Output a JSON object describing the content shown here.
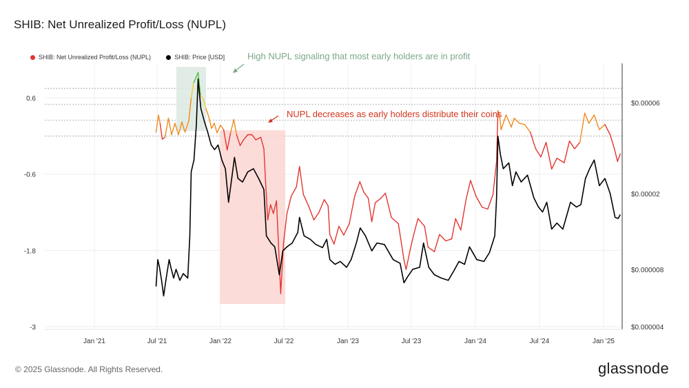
{
  "page": {
    "title": "SHIB: Net Unrealized Profit/Loss (NUPL)",
    "footer": "© 2025 Glassnode. All Rights Reserved.",
    "logo": "glassnode"
  },
  "colors": {
    "nupl_red": "#e3342f",
    "nupl_orange": "#f08a1c",
    "nupl_yellow": "#e9cf3a",
    "nupl_green": "#4ec23c",
    "price": "#000000",
    "green_annotation": "#7aa889",
    "red_annotation": "#d2341c",
    "green_box": "#dde9e2",
    "red_box": "#fbd6d2"
  },
  "chart_data": {
    "type": "line",
    "legend": [
      {
        "label": "SHIB: Net Unrealized Profit/Loss (NUPL)",
        "color": "#e3342f"
      },
      {
        "label": "SHIB: Price [USD]",
        "color": "#000000"
      }
    ],
    "x_ticks": [
      "Jan '21",
      "Jul '21",
      "Jan '22",
      "Jul '22",
      "Jan '23",
      "Jul '23",
      "Jan '24",
      "Jul '24",
      "Jan '25"
    ],
    "x_tick_dates": [
      "2021-01-01",
      "2021-07-01",
      "2022-01-01",
      "2022-07-01",
      "2023-01-01",
      "2023-07-01",
      "2024-01-01",
      "2024-07-01",
      "2025-01-01"
    ],
    "y_left": {
      "ticks": [
        "0.6",
        "-0.6",
        "-1.8",
        "-3"
      ],
      "values": [
        0.6,
        -0.6,
        -1.8,
        -3
      ],
      "range": [
        -3,
        0.6
      ]
    },
    "y_right": {
      "ticks": [
        "$0.00006",
        "$0.00002",
        "$0.000008",
        "$0.000004"
      ],
      "values": [
        6e-05,
        2e-05,
        8e-06,
        4e-06
      ],
      "scale": "log",
      "range": [
        4e-06,
        8e-05
      ]
    },
    "nupl_threshold_lines": [
      0.75,
      0.5,
      0.25,
      0
    ],
    "series": [
      {
        "name": "SHIB: Net Unrealized Profit/Loss (NUPL)",
        "axis": "left",
        "points": [
          [
            "2021-06-28",
            0.06
          ],
          [
            "2021-07-05",
            0.33
          ],
          [
            "2021-07-10",
            0.19
          ],
          [
            "2021-07-16",
            -0.05
          ],
          [
            "2021-07-24",
            -0.02
          ],
          [
            "2021-08-03",
            0.28
          ],
          [
            "2021-08-12",
            0.02
          ],
          [
            "2021-08-22",
            0.2
          ],
          [
            "2021-09-01",
            0.02
          ],
          [
            "2021-09-11",
            0.22
          ],
          [
            "2021-09-20",
            0.06
          ],
          [
            "2021-10-01",
            0.24
          ],
          [
            "2021-10-08",
            0.6
          ],
          [
            "2021-10-15",
            0.84
          ],
          [
            "2021-10-22",
            0.92
          ],
          [
            "2021-10-28",
            1.0
          ],
          [
            "2021-11-04",
            0.64
          ],
          [
            "2021-11-12",
            0.58
          ],
          [
            "2021-11-20",
            0.43
          ],
          [
            "2021-11-28",
            0.3
          ],
          [
            "2021-12-06",
            0.12
          ],
          [
            "2021-12-14",
            0.2
          ],
          [
            "2021-12-22",
            0.05
          ],
          [
            "2022-01-01",
            0.17
          ],
          [
            "2022-01-10",
            0.1
          ],
          [
            "2022-01-20",
            -0.22
          ],
          [
            "2022-01-30",
            0.05
          ],
          [
            "2022-02-08",
            0.26
          ],
          [
            "2022-02-16",
            0.02
          ],
          [
            "2022-02-26",
            -0.15
          ],
          [
            "2022-03-08",
            -0.06
          ],
          [
            "2022-03-20",
            0.02
          ],
          [
            "2022-04-01",
            0.02
          ],
          [
            "2022-04-12",
            -0.06
          ],
          [
            "2022-04-26",
            -0.02
          ],
          [
            "2022-05-05",
            -0.2
          ],
          [
            "2022-05-10",
            -0.75
          ],
          [
            "2022-05-16",
            -1.32
          ],
          [
            "2022-05-24",
            -1.08
          ],
          [
            "2022-06-01",
            -1.22
          ],
          [
            "2022-06-10",
            -1.02
          ],
          [
            "2022-06-18",
            -2.0
          ],
          [
            "2022-06-22",
            -2.48
          ],
          [
            "2022-06-30",
            -1.68
          ],
          [
            "2022-07-10",
            -1.22
          ],
          [
            "2022-07-22",
            -0.95
          ],
          [
            "2022-08-06",
            -0.8
          ],
          [
            "2022-08-15",
            -0.48
          ],
          [
            "2022-08-26",
            -0.92
          ],
          [
            "2022-09-10",
            -1.1
          ],
          [
            "2022-09-25",
            -1.32
          ],
          [
            "2022-10-10",
            -1.2
          ],
          [
            "2022-10-25",
            -1.0
          ],
          [
            "2022-11-05",
            -1.1
          ],
          [
            "2022-11-10",
            -1.55
          ],
          [
            "2022-11-22",
            -1.7
          ],
          [
            "2022-12-06",
            -1.42
          ],
          [
            "2022-12-20",
            -1.56
          ],
          [
            "2023-01-05",
            -1.38
          ],
          [
            "2023-01-20",
            -0.95
          ],
          [
            "2023-02-04",
            -0.72
          ],
          [
            "2023-02-15",
            -0.88
          ],
          [
            "2023-02-28",
            -0.98
          ],
          [
            "2023-03-10",
            -1.35
          ],
          [
            "2023-03-20",
            -1.05
          ],
          [
            "2023-04-05",
            -0.98
          ],
          [
            "2023-04-18",
            -0.9
          ],
          [
            "2023-05-05",
            -1.28
          ],
          [
            "2023-05-25",
            -1.38
          ],
          [
            "2023-06-10",
            -1.95
          ],
          [
            "2023-06-16",
            -2.1
          ],
          [
            "2023-06-28",
            -1.78
          ],
          [
            "2023-07-08",
            -1.55
          ],
          [
            "2023-07-20",
            -1.3
          ],
          [
            "2023-08-08",
            -1.42
          ],
          [
            "2023-08-18",
            -1.75
          ],
          [
            "2023-09-05",
            -1.82
          ],
          [
            "2023-09-20",
            -1.55
          ],
          [
            "2023-10-08",
            -1.65
          ],
          [
            "2023-10-25",
            -1.62
          ],
          [
            "2023-11-05",
            -1.3
          ],
          [
            "2023-11-20",
            -1.48
          ],
          [
            "2023-12-05",
            -1.0
          ],
          [
            "2023-12-18",
            -0.7
          ],
          [
            "2024-01-03",
            -0.95
          ],
          [
            "2024-01-20",
            -1.12
          ],
          [
            "2024-02-05",
            -1.15
          ],
          [
            "2024-02-20",
            -0.92
          ],
          [
            "2024-03-01",
            -0.4
          ],
          [
            "2024-03-05",
            0.4
          ],
          [
            "2024-03-10",
            0.3
          ],
          [
            "2024-03-14",
            0.1
          ],
          [
            "2024-03-28",
            0.33
          ],
          [
            "2024-04-12",
            0.14
          ],
          [
            "2024-04-20",
            0.28
          ],
          [
            "2024-05-05",
            0.2
          ],
          [
            "2024-05-20",
            0.18
          ],
          [
            "2024-06-05",
            0.06
          ],
          [
            "2024-06-20",
            -0.2
          ],
          [
            "2024-07-05",
            -0.33
          ],
          [
            "2024-07-20",
            -0.1
          ],
          [
            "2024-08-05",
            -0.52
          ],
          [
            "2024-08-20",
            -0.35
          ],
          [
            "2024-09-10",
            -0.42
          ],
          [
            "2024-09-25",
            -0.08
          ],
          [
            "2024-10-10",
            -0.2
          ],
          [
            "2024-10-25",
            -0.1
          ],
          [
            "2024-11-08",
            0.36
          ],
          [
            "2024-11-20",
            0.2
          ],
          [
            "2024-12-05",
            0.33
          ],
          [
            "2024-12-20",
            0.1
          ],
          [
            "2025-01-05",
            0.18
          ],
          [
            "2025-01-20",
            0.02
          ],
          [
            "2025-02-01",
            -0.2
          ],
          [
            "2025-02-10",
            -0.4
          ],
          [
            "2025-02-18",
            -0.28
          ]
        ]
      },
      {
        "name": "SHIB: Price [USD]",
        "axis": "right",
        "points": [
          [
            "2021-06-28",
            6.5e-06
          ],
          [
            "2021-07-03",
            9e-06
          ],
          [
            "2021-07-08",
            8.2e-06
          ],
          [
            "2021-07-14",
            7e-06
          ],
          [
            "2021-07-20",
            5.8e-06
          ],
          [
            "2021-07-28",
            7.3e-06
          ],
          [
            "2021-08-05",
            9e-06
          ],
          [
            "2021-08-10",
            8.2e-06
          ],
          [
            "2021-08-18",
            7.2e-06
          ],
          [
            "2021-08-25",
            8e-06
          ],
          [
            "2021-09-05",
            7e-06
          ],
          [
            "2021-09-15",
            7.6e-06
          ],
          [
            "2021-09-28",
            7.2e-06
          ],
          [
            "2021-10-04",
            1.2e-05
          ],
          [
            "2021-10-08",
            2.6e-05
          ],
          [
            "2021-10-16",
            3e-05
          ],
          [
            "2021-10-23",
            4.6e-05
          ],
          [
            "2021-10-28",
            8e-05
          ],
          [
            "2021-11-05",
            5.6e-05
          ],
          [
            "2021-11-15",
            4.8e-05
          ],
          [
            "2021-11-25",
            4.2e-05
          ],
          [
            "2021-12-05",
            3.6e-05
          ],
          [
            "2021-12-15",
            3.4e-05
          ],
          [
            "2021-12-25",
            3.6e-05
          ],
          [
            "2022-01-05",
            3e-05
          ],
          [
            "2022-01-15",
            2.7e-05
          ],
          [
            "2022-01-24",
            1.8e-05
          ],
          [
            "2022-02-02",
            2.4e-05
          ],
          [
            "2022-02-10",
            3.1e-05
          ],
          [
            "2022-02-20",
            2.4e-05
          ],
          [
            "2022-03-05",
            2.3e-05
          ],
          [
            "2022-03-20",
            2.6e-05
          ],
          [
            "2022-04-05",
            2.7e-05
          ],
          [
            "2022-04-20",
            2.4e-05
          ],
          [
            "2022-05-05",
            2.1e-05
          ],
          [
            "2022-05-12",
            1.2e-05
          ],
          [
            "2022-05-25",
            1.1e-05
          ],
          [
            "2022-06-05",
            1.05e-05
          ],
          [
            "2022-06-18",
            7.5e-06
          ],
          [
            "2022-06-28",
            1e-05
          ],
          [
            "2022-07-10",
            1.05e-05
          ],
          [
            "2022-07-25",
            1.1e-05
          ],
          [
            "2022-08-10",
            1.25e-05
          ],
          [
            "2022-08-15",
            1.5e-05
          ],
          [
            "2022-08-28",
            1.2e-05
          ],
          [
            "2022-09-15",
            1.15e-05
          ],
          [
            "2022-10-01",
            1.08e-05
          ],
          [
            "2022-10-20",
            1.04e-05
          ],
          [
            "2022-11-01",
            1.15e-05
          ],
          [
            "2022-11-10",
            9e-06
          ],
          [
            "2022-11-25",
            8.5e-06
          ],
          [
            "2022-12-10",
            8.8e-06
          ],
          [
            "2022-12-28",
            8.2e-06
          ],
          [
            "2023-01-10",
            9e-06
          ],
          [
            "2023-01-25",
            1.1e-05
          ],
          [
            "2023-02-05",
            1.32e-05
          ],
          [
            "2023-02-20",
            1.2e-05
          ],
          [
            "2023-03-10",
            1e-05
          ],
          [
            "2023-03-25",
            1.1e-05
          ],
          [
            "2023-04-15",
            1.08e-05
          ],
          [
            "2023-05-10",
            9e-06
          ],
          [
            "2023-05-30",
            8.6e-06
          ],
          [
            "2023-06-10",
            6.8e-06
          ],
          [
            "2023-06-20",
            7.3e-06
          ],
          [
            "2023-07-05",
            8e-06
          ],
          [
            "2023-07-25",
            8.2e-06
          ],
          [
            "2023-08-05",
            1.1e-05
          ],
          [
            "2023-08-20",
            8.2e-06
          ],
          [
            "2023-09-05",
            7.5e-06
          ],
          [
            "2023-09-25",
            7.2e-06
          ],
          [
            "2023-10-15",
            7e-06
          ],
          [
            "2023-10-30",
            7.8e-06
          ],
          [
            "2023-11-15",
            8.8e-06
          ],
          [
            "2023-12-01",
            8.5e-06
          ],
          [
            "2023-12-15",
            1.05e-05
          ],
          [
            "2024-01-05",
            9e-06
          ],
          [
            "2024-01-25",
            8.8e-06
          ],
          [
            "2024-02-10",
            9.8e-06
          ],
          [
            "2024-02-25",
            1.2e-05
          ],
          [
            "2024-03-01",
            1.9e-05
          ],
          [
            "2024-03-05",
            4e-05
          ],
          [
            "2024-03-12",
            3.2e-05
          ],
          [
            "2024-03-20",
            2.7e-05
          ],
          [
            "2024-04-05",
            2.9e-05
          ],
          [
            "2024-04-15",
            2.2e-05
          ],
          [
            "2024-04-25",
            2.6e-05
          ],
          [
            "2024-05-10",
            2.3e-05
          ],
          [
            "2024-05-28",
            2.5e-05
          ],
          [
            "2024-06-15",
            1.9e-05
          ],
          [
            "2024-06-28",
            1.7e-05
          ],
          [
            "2024-07-10",
            1.6e-05
          ],
          [
            "2024-07-22",
            1.8e-05
          ],
          [
            "2024-08-05",
            1.3e-05
          ],
          [
            "2024-08-20",
            1.4e-05
          ],
          [
            "2024-09-06",
            1.3e-05
          ],
          [
            "2024-09-28",
            1.8e-05
          ],
          [
            "2024-10-15",
            1.7e-05
          ],
          [
            "2024-10-28",
            1.75e-05
          ],
          [
            "2024-11-10",
            2.4e-05
          ],
          [
            "2024-11-22",
            2.7e-05
          ],
          [
            "2024-12-05",
            3e-05
          ],
          [
            "2024-12-20",
            2.2e-05
          ],
          [
            "2025-01-05",
            2.4e-05
          ],
          [
            "2025-01-20",
            2e-05
          ],
          [
            "2025-02-03",
            1.5e-05
          ],
          [
            "2025-02-12",
            1.48e-05
          ],
          [
            "2025-02-18",
            1.55e-05
          ]
        ]
      }
    ],
    "annotations": [
      {
        "text": "High NUPL signaling that most early holders are in profit",
        "color": "#7aa889",
        "box_from": "2021-08-26",
        "box_to": "2021-11-20"
      },
      {
        "text": "NUPL decreases as early holders distribute their coins",
        "color": "#d2341c",
        "box_from": "2021-12-30",
        "box_to": "2022-07-05"
      }
    ]
  }
}
